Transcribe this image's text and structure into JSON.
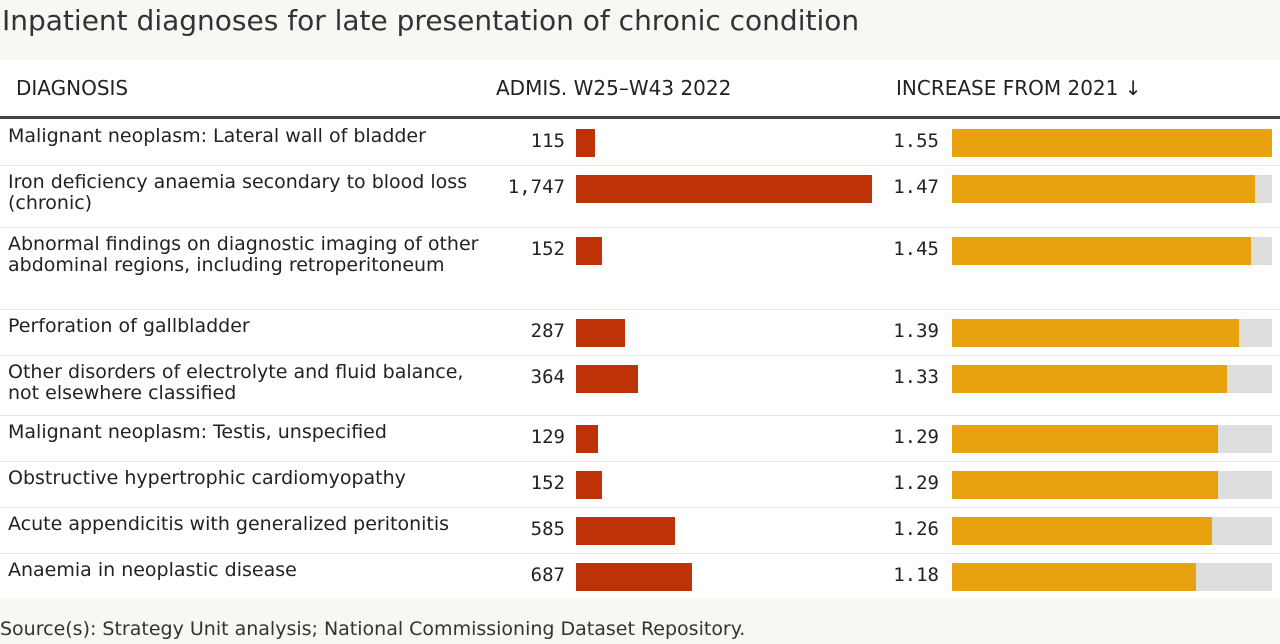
{
  "title": "Inpatient diagnoses for late presentation of chronic condition",
  "columns": {
    "diagnosis": "DIAGNOSIS",
    "admissions": "ADMIS. W25–W43 2022",
    "increase": "INCREASE FROM 2021 ↓"
  },
  "source": "Source(s): Strategy Unit analysis; National Commissioning Dataset Repository.",
  "colors": {
    "admissions_bar": "#be3207",
    "increase_bar": "#e8a20f",
    "increase_track": "#dedede"
  },
  "chart_data": {
    "type": "table",
    "sorted_by": "increase",
    "sort_order": "descending",
    "admissions_max": 1747,
    "increase_max": 1.55,
    "rows": [
      {
        "diagnosis": "Malignant neoplasm: Lateral wall of bladder",
        "admissions": 115,
        "admissions_label": "115",
        "increase": 1.55,
        "increase_label": "1.55"
      },
      {
        "diagnosis": "Iron deficiency anaemia secondary to blood loss (chronic)",
        "admissions": 1747,
        "admissions_label": "1,747",
        "increase": 1.47,
        "increase_label": "1.47"
      },
      {
        "diagnosis": "Abnormal findings on diagnostic imaging of other abdominal regions, including retroperitoneum",
        "admissions": 152,
        "admissions_label": "152",
        "increase": 1.45,
        "increase_label": "1.45"
      },
      {
        "diagnosis": "Perforation of gallbladder",
        "admissions": 287,
        "admissions_label": "287",
        "increase": 1.39,
        "increase_label": "1.39"
      },
      {
        "diagnosis": "Other disorders of electrolyte and fluid balance, not elsewhere classified",
        "admissions": 364,
        "admissions_label": "364",
        "increase": 1.33,
        "increase_label": "1.33"
      },
      {
        "diagnosis": "Malignant neoplasm: Testis, unspecified",
        "admissions": 129,
        "admissions_label": "129",
        "increase": 1.29,
        "increase_label": "1.29"
      },
      {
        "diagnosis": "Obstructive hypertrophic cardiomyopathy",
        "admissions": 152,
        "admissions_label": "152",
        "increase": 1.29,
        "increase_label": "1.29"
      },
      {
        "diagnosis": "Acute appendicitis with generalized peritonitis",
        "admissions": 585,
        "admissions_label": "585",
        "increase": 1.26,
        "increase_label": "1.26"
      },
      {
        "diagnosis": "Anaemia in neoplastic disease",
        "admissions": 687,
        "admissions_label": "687",
        "increase": 1.18,
        "increase_label": "1.18"
      }
    ]
  }
}
